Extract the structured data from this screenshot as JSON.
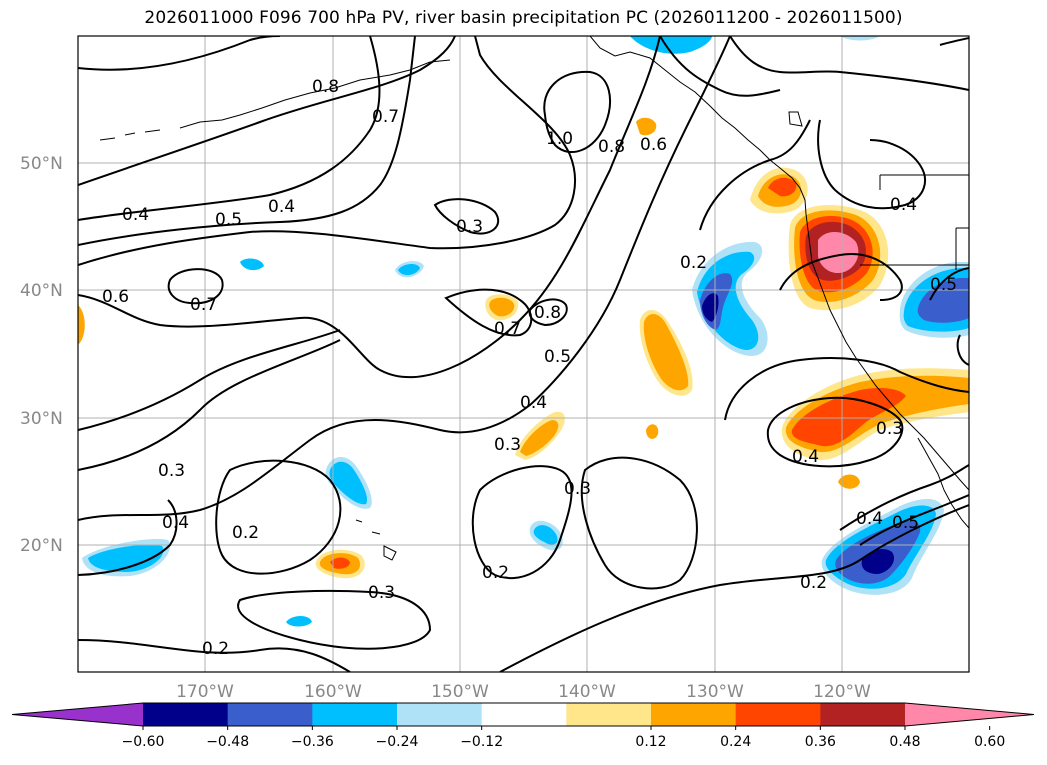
{
  "title": "2026011000 F096 700 hPa PV, river basin precipitation PC (2026011200 - 2026011500)",
  "lat_labels": [
    "50°N",
    "40°N",
    "30°N",
    "20°N"
  ],
  "lon_labels": [
    "170°W",
    "160°W",
    "150°W",
    "140°W",
    "130°W",
    "120°W"
  ],
  "contour_labels": [
    "0.8",
    "0.7",
    "0.4",
    "0.4",
    "0.5",
    "0.3",
    "1.0",
    "0.8",
    "0.6",
    "0.6",
    "0.7",
    "0.2",
    "0.7",
    "0.8",
    "0.5",
    "0.4",
    "0.3",
    "0.3",
    "0.3",
    "0.4",
    "0.2",
    "0.3",
    "0.2",
    "0.2",
    "0.4",
    "0.3",
    "0.4",
    "0.5",
    "0.2",
    "0.4",
    "0.5"
  ],
  "colorbar": {
    "ticks": [
      "−0.60",
      "−0.48",
      "−0.36",
      "−0.24",
      "−0.12",
      "0.12",
      "0.24",
      "0.36",
      "0.48",
      "0.60"
    ],
    "colors": [
      "#9932cc",
      "#00008b",
      "#3a5fcd",
      "#00bfff",
      "#afe1f7",
      "#ffffff",
      "#ffe68a",
      "#ffa500",
      "#ff4500",
      "#b22222",
      "#ff88aa"
    ]
  },
  "fill_colors": {
    "neg_light": "#afe1f7",
    "neg_mid": "#00bfff",
    "neg_strong": "#3a5fcd",
    "neg_max": "#00008b",
    "pos_light": "#ffe68a",
    "pos_mid": "#ffa500",
    "pos_strong": "#ff4500",
    "pos_dark": "#b22222",
    "pos_max": "#ff88aa"
  }
}
